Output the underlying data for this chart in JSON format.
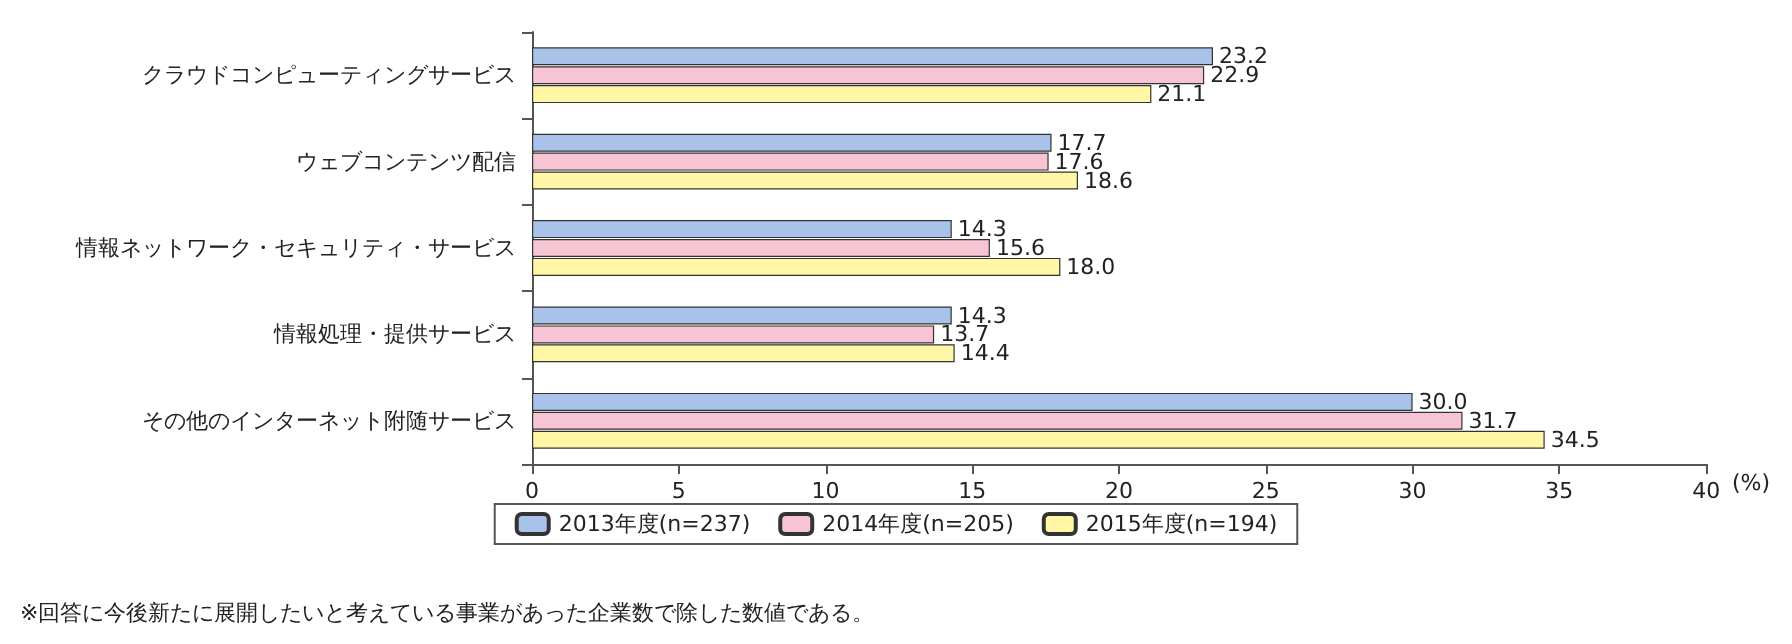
{
  "chart_data": {
    "type": "bar",
    "orientation": "horizontal",
    "categories": [
      "クラウドコンピューティングサービス",
      "ウェブコンテンツ配信",
      "情報ネットワーク・セキュリティ・サービス",
      "情報処理・提供サービス",
      "その他のインターネット附随サービス"
    ],
    "series": [
      {
        "name": "2013年度(n=237)",
        "color": "#a8c2ea",
        "values": [
          23.2,
          17.7,
          14.3,
          14.3,
          30.0
        ],
        "value_labels": [
          "23.2",
          "17.7",
          "14.3",
          "14.3",
          "30.0"
        ]
      },
      {
        "name": "2014年度(n=205)",
        "color": "#f6c4d2",
        "values": [
          22.9,
          17.6,
          15.6,
          13.7,
          31.7
        ],
        "value_labels": [
          "22.9",
          "17.6",
          "15.6",
          "13.7",
          "31.7"
        ]
      },
      {
        "name": "2015年度(n=194)",
        "color": "#fff6a6",
        "values": [
          21.1,
          18.6,
          18.0,
          14.4,
          34.5
        ],
        "value_labels": [
          "21.1",
          "18.6",
          "18.0",
          "14.4",
          "34.5"
        ]
      }
    ],
    "xlim": [
      0,
      40
    ],
    "xticks": [
      0,
      5,
      10,
      15,
      20,
      25,
      30,
      35,
      40
    ],
    "xlabel": "(%)",
    "grid": false,
    "legend": "bottom",
    "annotations": [
      "※回答に今後新たに展開したいと考えている事業があった企業数で除した数値である。"
    ]
  }
}
